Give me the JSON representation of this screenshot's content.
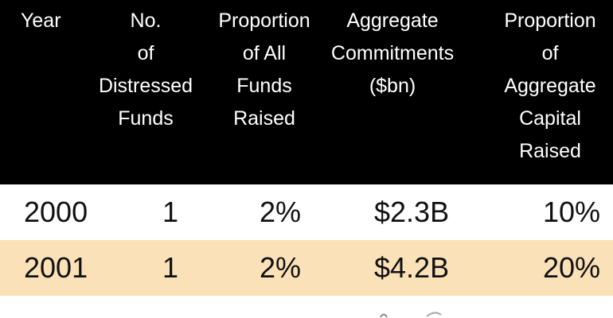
{
  "chart_data": {
    "type": "table",
    "columns": [
      [
        "Year"
      ],
      [
        "No.",
        "of",
        "Distressed",
        "Funds"
      ],
      [
        "Proportion",
        "of All",
        "Funds",
        "Raised"
      ],
      [
        "Aggregate",
        "Commitments",
        "($bn)"
      ],
      [
        "Proportion",
        "of",
        "Aggregate",
        "Capital",
        "Raised"
      ]
    ],
    "rows": [
      {
        "year": "2000",
        "num_funds": "1",
        "proportion_funds": "2%",
        "commitments": "$2.3B",
        "proportion_capital": "10%"
      },
      {
        "year": "2001",
        "num_funds": "1",
        "proportion_funds": "2%",
        "commitments": "$4.2B",
        "proportion_capital": "20%"
      }
    ]
  },
  "colors": {
    "header_bg": "#000000",
    "header_text": "#ffffff",
    "highlight_row": "#fbe1b8",
    "body_text": "#111111"
  }
}
